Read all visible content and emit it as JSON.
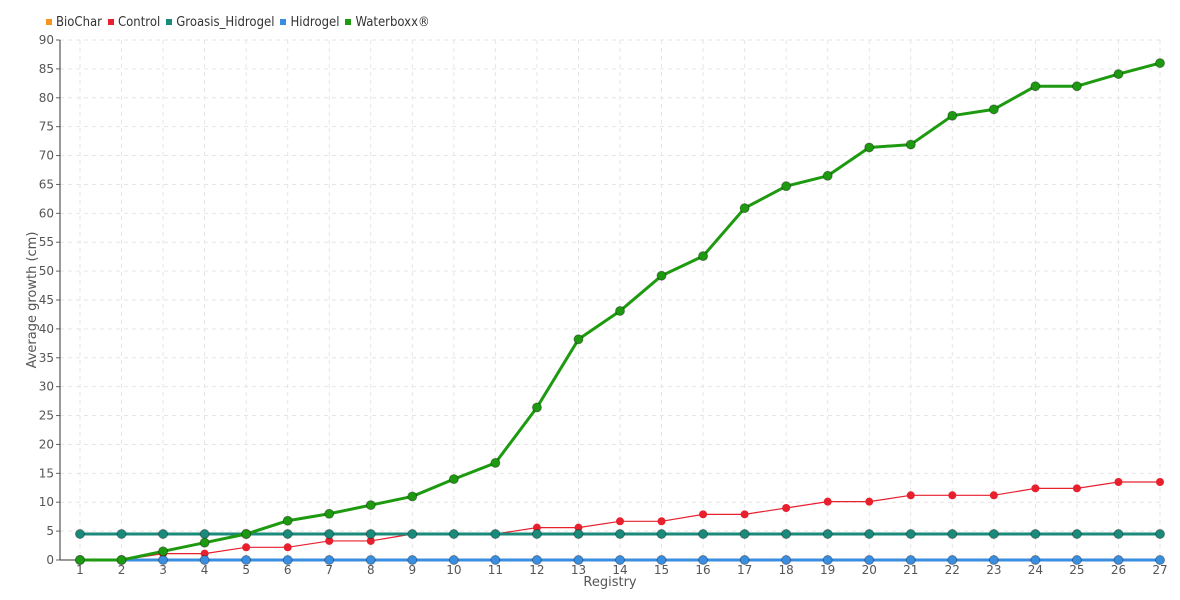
{
  "chart_data": {
    "type": "line",
    "xlabel": "Registry",
    "ylabel": "Average growth (cm)",
    "ylim": [
      0,
      90
    ],
    "y_ticks": [
      0,
      5,
      10,
      15,
      20,
      25,
      30,
      35,
      40,
      45,
      50,
      55,
      60,
      65,
      70,
      75,
      80,
      85,
      90
    ],
    "x": [
      "1",
      "2",
      "3",
      "4",
      "5",
      "6",
      "7",
      "8",
      "9",
      "10",
      "11",
      "12",
      "13",
      "14",
      "15",
      "16",
      "17",
      "18",
      "19",
      "20",
      "21",
      "22",
      "23",
      "24",
      "25",
      "26",
      "27"
    ],
    "grid": true,
    "legend_position": "top-left",
    "series": [
      {
        "name": "BioChar",
        "color": "#f7941d",
        "marker": false,
        "width": 1.5,
        "values": [
          4.5,
          4.5,
          4.5,
          4.5,
          4.5,
          4.5,
          4.5,
          4.5,
          4.5,
          4.5,
          4.5,
          4.5,
          4.5,
          4.5,
          4.5,
          4.5,
          4.5,
          4.5,
          4.5,
          4.5,
          4.5,
          4.5,
          4.5,
          4.5,
          4.5,
          4.5,
          4.5
        ]
      },
      {
        "name": "Control",
        "color": "#e8202e",
        "marker": true,
        "width": 1.2,
        "values": [
          0,
          0,
          1.1,
          1.1,
          2.2,
          2.2,
          3.3,
          3.3,
          4.5,
          4.5,
          4.5,
          5.6,
          5.6,
          6.7,
          6.7,
          7.9,
          7.9,
          9,
          10.1,
          10.1,
          11.2,
          11.2,
          11.2,
          12.4,
          12.4,
          13.5,
          13.5
        ]
      },
      {
        "name": "Groasis_Hidrogel",
        "color": "#1a8a7a",
        "marker": true,
        "width": 3,
        "values": [
          4.5,
          4.5,
          4.5,
          4.5,
          4.5,
          4.5,
          4.5,
          4.5,
          4.5,
          4.5,
          4.5,
          4.5,
          4.5,
          4.5,
          4.5,
          4.5,
          4.5,
          4.5,
          4.5,
          4.5,
          4.5,
          4.5,
          4.5,
          4.5,
          4.5,
          4.5,
          4.5
        ]
      },
      {
        "name": "Hidrogel",
        "color": "#3a8ee0",
        "marker": true,
        "width": 3,
        "values": [
          0,
          0,
          0,
          0,
          0,
          0,
          0,
          0,
          0,
          0,
          0,
          0,
          0,
          0,
          0,
          0,
          0,
          0,
          0,
          0,
          0,
          0,
          0,
          0,
          0,
          0,
          0
        ]
      },
      {
        "name": "Waterboxx®",
        "color": "#1e9a10",
        "marker": true,
        "width": 3,
        "values": [
          0,
          0,
          1.5,
          3,
          4.5,
          6.8,
          8,
          9.5,
          11,
          14,
          16.8,
          26.4,
          38.2,
          43.1,
          49.2,
          52.6,
          60.9,
          64.7,
          66.5,
          71.4,
          71.9,
          76.9,
          78,
          82,
          82,
          84.1,
          86
        ]
      }
    ]
  }
}
